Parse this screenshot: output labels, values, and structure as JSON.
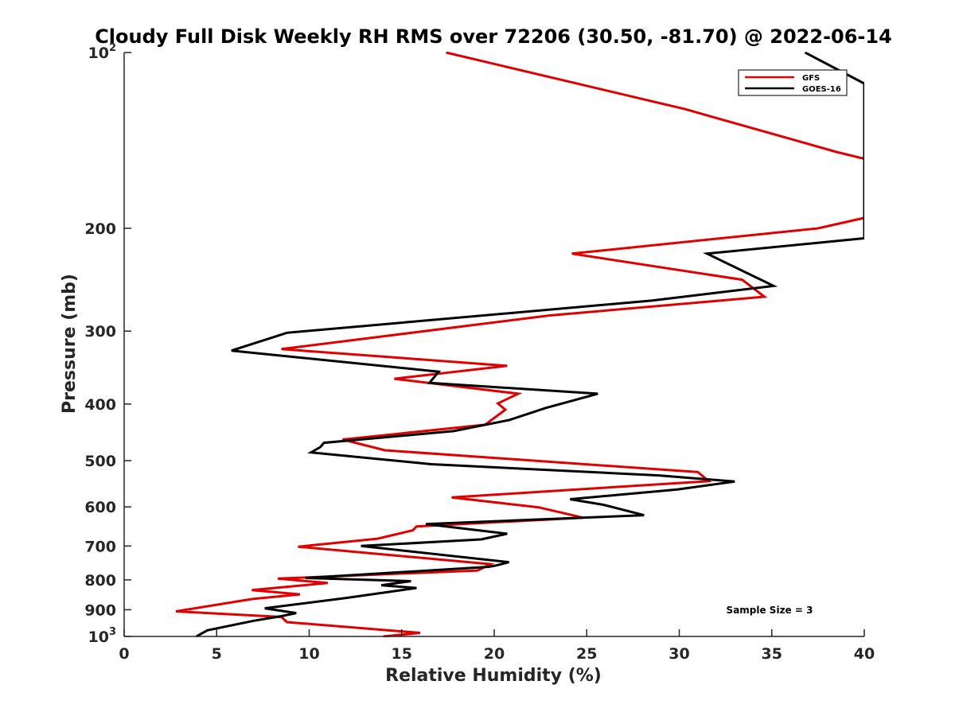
{
  "chart_data": {
    "type": "line",
    "title": "Cloudy Full Disk Weekly RH RMS over 72206 (30.50, -81.70) @ 2022-06-14",
    "xlabel": "Relative Humidity (%)",
    "ylabel": "Pressure (mb)",
    "xlim": [
      0,
      40
    ],
    "ylim": [
      100,
      1000
    ],
    "yscale": "log",
    "yreversed": true,
    "x_ticks": [
      "0",
      "5",
      "10",
      "15",
      "20",
      "25",
      "30",
      "35",
      "40"
    ],
    "y_ticks": [
      {
        "value": 100,
        "base": "10",
        "exp": "2"
      },
      {
        "value": 200,
        "label": "200"
      },
      {
        "value": 300,
        "label": "300"
      },
      {
        "value": 400,
        "label": "400"
      },
      {
        "value": 500,
        "label": "500"
      },
      {
        "value": 600,
        "label": "600"
      },
      {
        "value": 700,
        "label": "700"
      },
      {
        "value": 800,
        "label": "800"
      },
      {
        "value": 900,
        "label": "900"
      },
      {
        "value": 1000,
        "base": "10",
        "exp": "3"
      }
    ],
    "legend_position": "top-right",
    "annotation": "Sample Size = 3",
    "series": [
      {
        "name": "GFS",
        "color": "#e00000",
        "points": [
          [
            17.4,
            100
          ],
          [
            30.3,
            125
          ],
          [
            38.5,
            148
          ],
          [
            40.0,
            152
          ],
          [
            40.0,
            192
          ],
          [
            37.5,
            200
          ],
          [
            24.2,
            221
          ],
          [
            33.4,
            245
          ],
          [
            34.6,
            262
          ],
          [
            23.0,
            282
          ],
          [
            8.5,
            322
          ],
          [
            20.7,
            344
          ],
          [
            14.6,
            362
          ],
          [
            21.3,
            384
          ],
          [
            20.2,
            399
          ],
          [
            20.6,
            409
          ],
          [
            19.5,
            434
          ],
          [
            11.8,
            460
          ],
          [
            14.1,
            480
          ],
          [
            31.0,
            523
          ],
          [
            31.6,
            542
          ],
          [
            22.6,
            565
          ],
          [
            17.7,
            578
          ],
          [
            22.4,
            601
          ],
          [
            24.8,
            626
          ],
          [
            15.8,
            648
          ],
          [
            15.6,
            658
          ],
          [
            13.7,
            680
          ],
          [
            9.4,
            702
          ],
          [
            19.8,
            752
          ],
          [
            19.1,
            771
          ],
          [
            8.3,
            796
          ],
          [
            11.0,
            810
          ],
          [
            6.9,
            833
          ],
          [
            9.5,
            847
          ],
          [
            6.9,
            863
          ],
          [
            2.8,
            906
          ],
          [
            8.5,
            926
          ],
          [
            8.8,
            945
          ],
          [
            16.0,
            986
          ],
          [
            14.0,
            1000
          ]
        ]
      },
      {
        "name": "GOES-16",
        "color": "#000000",
        "points": [
          [
            36.8,
            100
          ],
          [
            40.0,
            113
          ],
          [
            40.0,
            208
          ],
          [
            31.5,
            221
          ],
          [
            35.1,
            251
          ],
          [
            28.5,
            266
          ],
          [
            8.8,
            302
          ],
          [
            5.8,
            324
          ],
          [
            17.0,
            352
          ],
          [
            16.5,
            368
          ],
          [
            25.6,
            384
          ],
          [
            22.8,
            406
          ],
          [
            20.8,
            426
          ],
          [
            17.8,
            445
          ],
          [
            10.8,
            466
          ],
          [
            10.6,
            474
          ],
          [
            10.1,
            484
          ],
          [
            16.6,
            507
          ],
          [
            28.9,
            530
          ],
          [
            33.0,
            543
          ],
          [
            29.9,
            560
          ],
          [
            24.1,
            582
          ],
          [
            25.9,
            595
          ],
          [
            28.1,
            620
          ],
          [
            16.3,
            642
          ],
          [
            20.7,
            667
          ],
          [
            19.3,
            682
          ],
          [
            12.8,
            700
          ],
          [
            20.8,
            746
          ],
          [
            20.1,
            756
          ],
          [
            19.7,
            760
          ],
          [
            9.8,
            794
          ],
          [
            15.5,
            804
          ],
          [
            13.9,
            817
          ],
          [
            15.8,
            826
          ],
          [
            12.0,
            859
          ],
          [
            7.6,
            895
          ],
          [
            9.3,
            912
          ],
          [
            8.5,
            923
          ],
          [
            7.0,
            940
          ],
          [
            4.5,
            976
          ],
          [
            3.9,
            1000
          ]
        ]
      }
    ]
  }
}
